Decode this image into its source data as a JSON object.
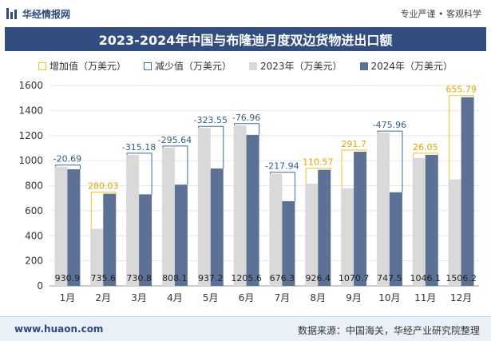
{
  "header": {
    "brand": "华经情报网",
    "tagline": "专业严谨 • 客观科学"
  },
  "title": "2023-2024年中国与布隆迪月度双边货物进出口额",
  "legend": {
    "increase": "增加值（万美元）",
    "decrease": "减少值（万美元）",
    "y2023": "2023年（万美元）",
    "y2024": "2024年（万美元）"
  },
  "footer": {
    "website": "www.huaon.com",
    "source": "数据来源：中国海关，华经产业研究院整理"
  },
  "colors": {
    "bar2023": "#d9d9d9",
    "bar2024": "#5d7196",
    "increase": "#f5c518",
    "decrease": "#3a6fa0",
    "increase_label": "#e0a800",
    "decrease_label": "#2f5f8f",
    "title_bg": "#324e80"
  },
  "chart_data": {
    "type": "bar",
    "categories": [
      "1月",
      "2月",
      "3月",
      "4月",
      "5月",
      "6月",
      "7月",
      "8月",
      "9月",
      "10月",
      "11月",
      "12月"
    ],
    "series": [
      {
        "name": "2023年（万美元）",
        "values": [
          951.59,
          455.57,
          1045.98,
          1103.74,
          1260.75,
          1282.56,
          894.24,
          815.83,
          779.0,
          1223.46,
          1020.05,
          850.41
        ]
      },
      {
        "name": "2024年（万美元）",
        "values": [
          930.9,
          735.6,
          730.8,
          808.1,
          937.2,
          1205.6,
          676.3,
          926.4,
          1070.7,
          747.5,
          1046.1,
          1506.2
        ]
      }
    ],
    "change_values": [
      -20.69,
      280.03,
      -315.18,
      -295.64,
      -323.55,
      -76.96,
      -217.94,
      110.57,
      291.7,
      -475.96,
      26.05,
      655.79
    ],
    "change_labels": [
      "-20.69",
      "280.03",
      "-315.18",
      "-295.64",
      "-323.55",
      "-76.96",
      "-217.94",
      "110.57",
      "291.7",
      "-475.96",
      "26.05",
      "655.79"
    ],
    "value_labels_2024": [
      "930.9",
      "735.6",
      "730.8",
      "808.1",
      "937.2",
      "1205.6",
      "676.3",
      "926.4",
      "1070.7",
      "747.5",
      "1046.1",
      "1506.2"
    ],
    "ylim": [
      0,
      1600
    ],
    "yticks": [
      0,
      200,
      400,
      600,
      800,
      1000,
      1200,
      1400,
      1600
    ],
    "grid": true,
    "legend_position": "top"
  }
}
